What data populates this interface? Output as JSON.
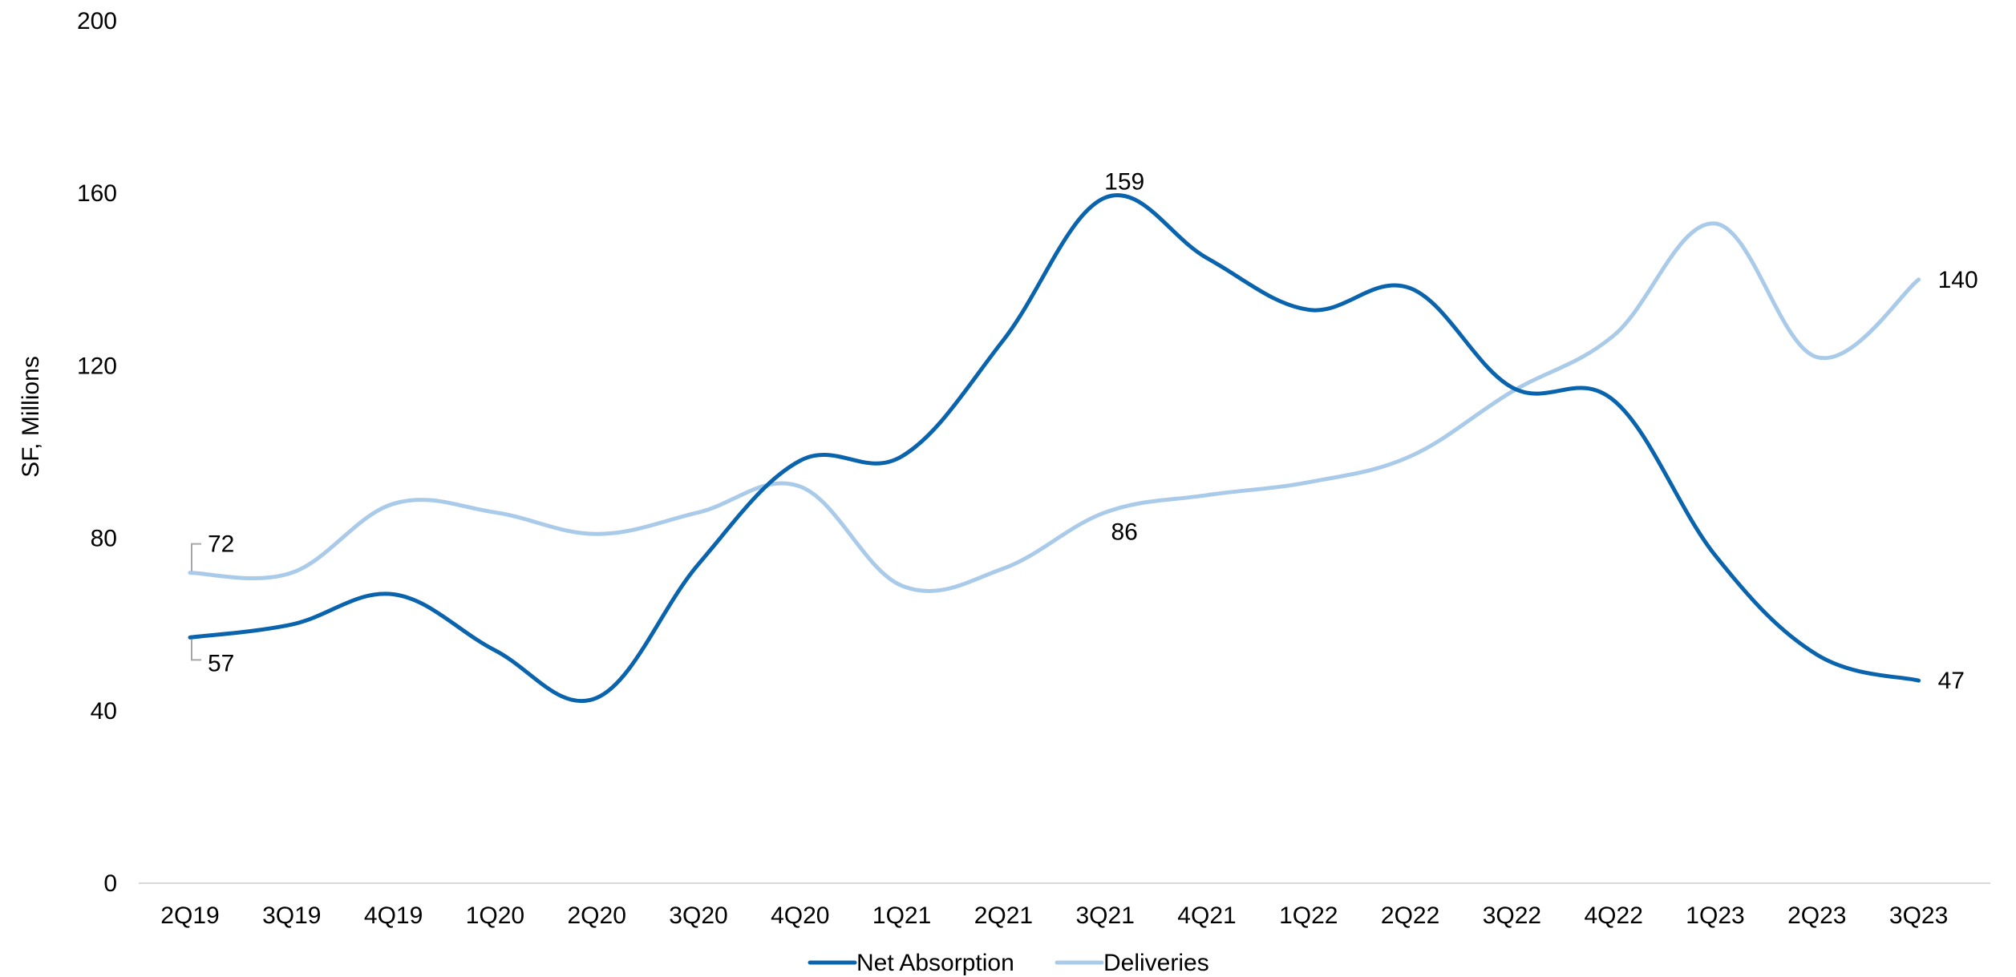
{
  "chart_data": {
    "type": "line",
    "title": "",
    "xlabel": "",
    "ylabel": "SF, Millions",
    "ylim": [
      0,
      200
    ],
    "yticks": [
      0,
      40,
      80,
      120,
      160,
      200
    ],
    "grid": false,
    "legend_position": "bottom",
    "categories": [
      "2Q19",
      "3Q19",
      "4Q19",
      "1Q20",
      "2Q20",
      "3Q20",
      "4Q20",
      "1Q21",
      "2Q21",
      "3Q21",
      "4Q21",
      "1Q22",
      "2Q22",
      "3Q22",
      "4Q22",
      "1Q23",
      "2Q23",
      "3Q23"
    ],
    "series": [
      {
        "name": "Net Absorption",
        "color": "#0a64ad",
        "values": [
          57,
          60,
          67,
          54,
          43,
          74,
          98,
          99,
          126,
          159,
          145,
          133,
          138,
          115,
          112,
          76,
          53,
          47
        ]
      },
      {
        "name": "Deliveries",
        "color": "#a9cbe9",
        "values": [
          72,
          72,
          88,
          86,
          81,
          86,
          92,
          69,
          73,
          86,
          90,
          93,
          99,
          114,
          127,
          153,
          122,
          140
        ]
      }
    ],
    "data_labels": [
      {
        "series": 0,
        "index": 0,
        "text": "57"
      },
      {
        "series": 0,
        "index": 9,
        "text": "159"
      },
      {
        "series": 0,
        "index": 17,
        "text": "47"
      },
      {
        "series": 1,
        "index": 0,
        "text": "72"
      },
      {
        "series": 1,
        "index": 9,
        "text": "86"
      },
      {
        "series": 1,
        "index": 17,
        "text": "140"
      }
    ]
  }
}
